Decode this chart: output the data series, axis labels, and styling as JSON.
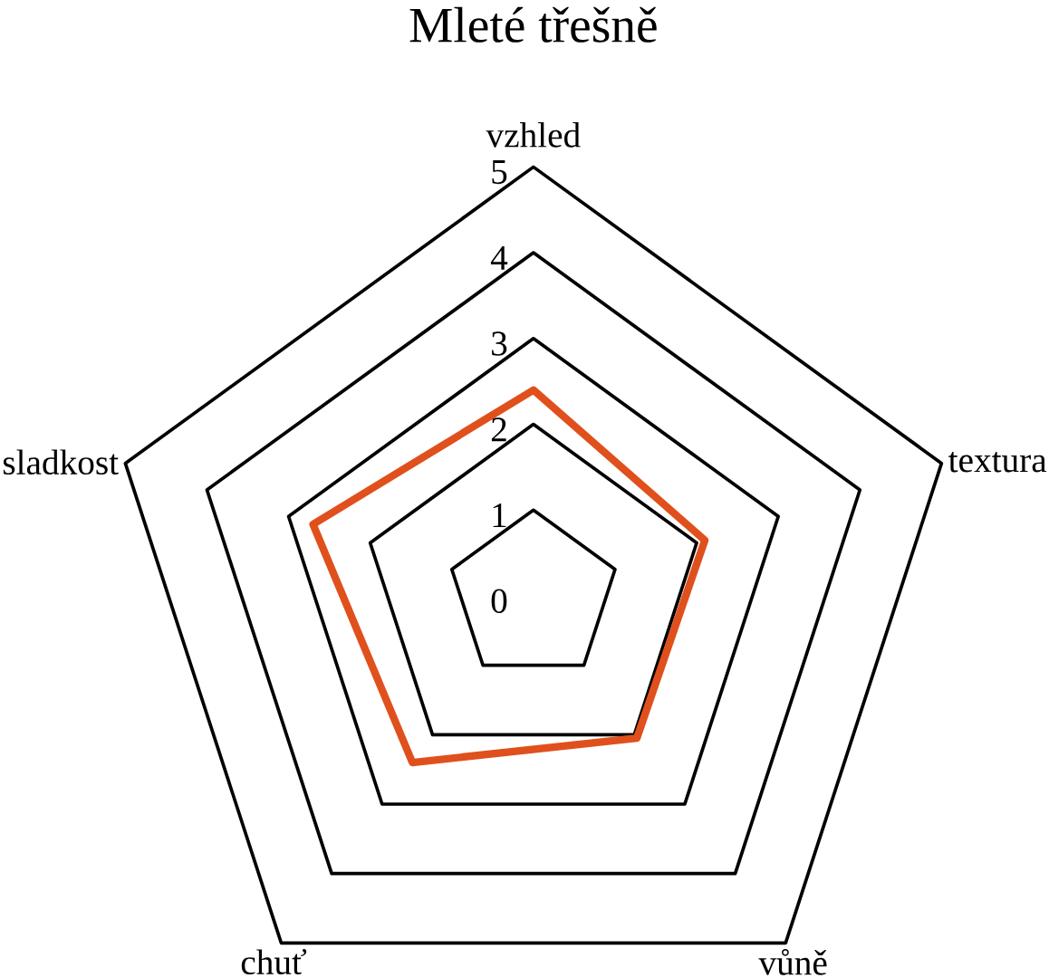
{
  "chart_data": {
    "type": "radar",
    "title": "Mleté třešně",
    "categories": [
      "vzhled",
      "textura",
      "vůně",
      "chuť",
      "sladkost"
    ],
    "series": [
      {
        "color": "#e0501c",
        "values": [
          2.4,
          2.1,
          2.05,
          2.4,
          2.7
        ]
      }
    ],
    "ylim": [
      0,
      5
    ],
    "yticks": [
      0,
      1,
      2,
      3,
      4,
      5
    ],
    "grid": true
  }
}
